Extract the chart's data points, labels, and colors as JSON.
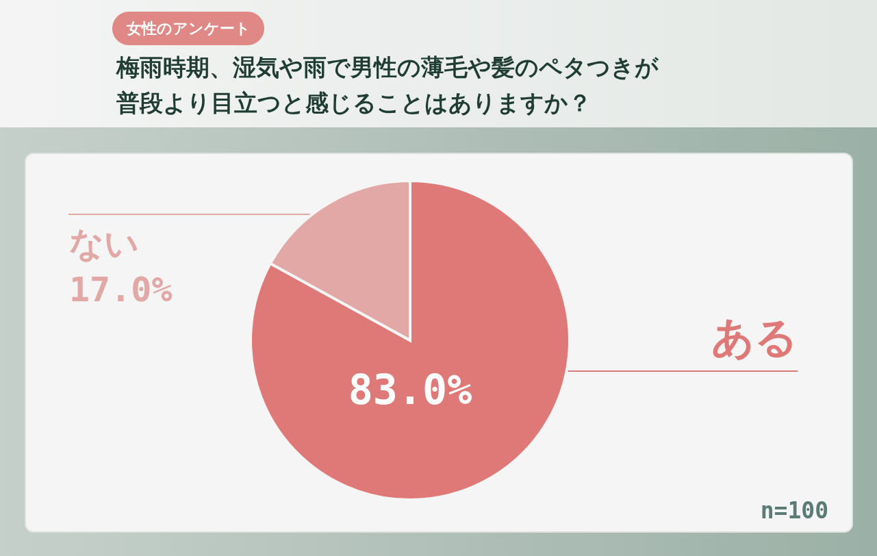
{
  "chart_data": {
    "type": "pie",
    "subtitle": "女性のアンケート",
    "title": "梅雨時期、湿気や雨で男性の薄毛や髪のペタつきが普段より目立つと感じることはありますか？",
    "categories": [
      "ある",
      "ない"
    ],
    "values": [
      83.0,
      17.0
    ],
    "colors": [
      "#df7977",
      "#e2a8a6"
    ],
    "value_labels": [
      "83.0%",
      "17.0%"
    ],
    "annotations": [
      "n=100"
    ]
  }
}
